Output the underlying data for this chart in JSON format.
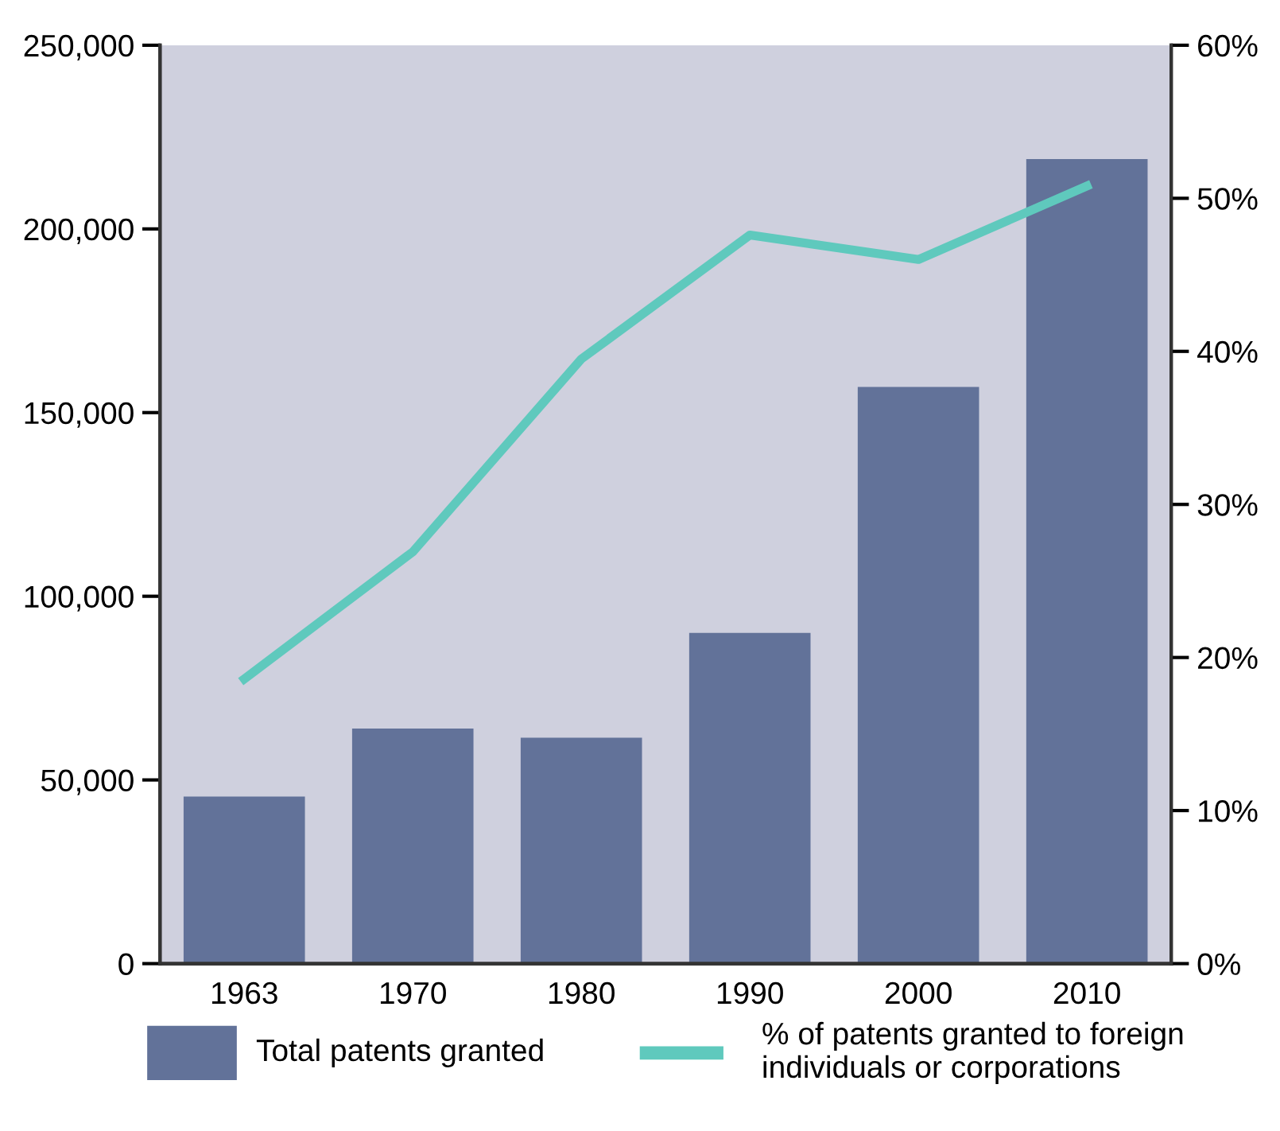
{
  "chart_data": {
    "type": "bar",
    "categories": [
      "1963",
      "1970",
      "1980",
      "1990",
      "2000",
      "2010"
    ],
    "series": [
      {
        "name": "Total patents granted",
        "color": "#627299",
        "values": [
          45500,
          64000,
          61500,
          90000,
          157000,
          219000
        ]
      },
      {
        "name": "% of patents granted to foreign individuals or corporations",
        "type": "line",
        "axis": "y2",
        "color": "#5fc9bd",
        "values": [
          18.6,
          26.9,
          39.5,
          47.6,
          46.0,
          50.8
        ]
      }
    ],
    "ylim": [
      0,
      250000
    ],
    "yticks": [
      0,
      {
        "value": 50000,
        "label": "50,000"
      },
      {
        "value": 100000,
        "label": "100,000"
      },
      {
        "value": 150000,
        "label": "150,000"
      },
      {
        "value": 200000,
        "label": "200,000"
      },
      {
        "value": 250000,
        "label": "250,000"
      }
    ],
    "y2lim": [
      0,
      60
    ],
    "y2ticks": [
      {
        "value": 0,
        "label": "0%"
      },
      {
        "value": 10,
        "label": "10%"
      },
      {
        "value": 20,
        "label": "20%"
      },
      {
        "value": 30,
        "label": "30%"
      },
      {
        "value": 40,
        "label": "40%"
      },
      {
        "value": 50,
        "label": "50%"
      },
      {
        "value": 60,
        "label": "60%"
      }
    ],
    "legend": "bottom",
    "grid": false,
    "marker": "none",
    "line_style": "solid"
  }
}
